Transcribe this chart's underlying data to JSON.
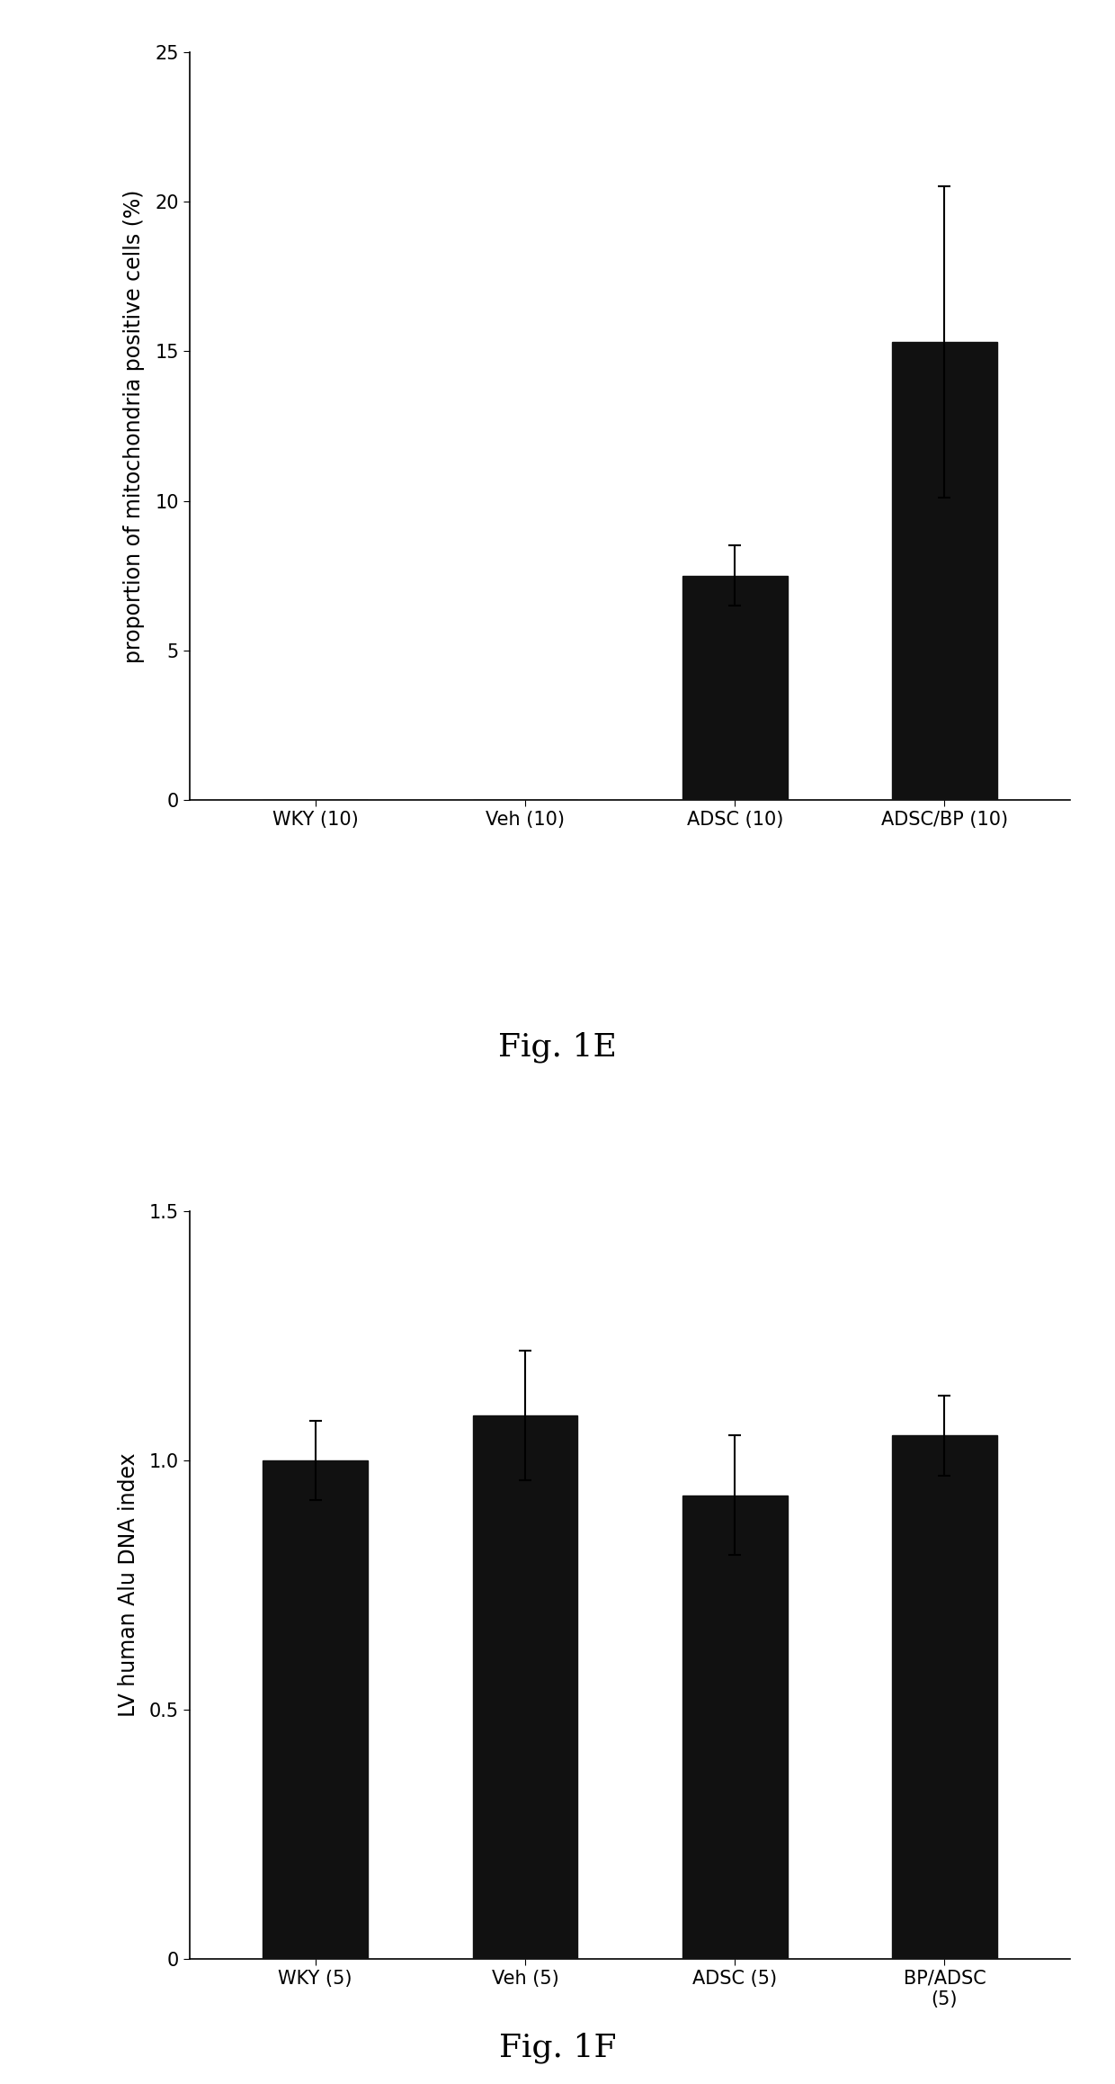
{
  "fig1e": {
    "categories": [
      "WKY (10)",
      "Veh (10)",
      "ADSC (10)",
      "ADSC/BP (10)"
    ],
    "values": [
      0.0,
      0.0,
      7.5,
      15.3
    ],
    "errors": [
      0.0,
      0.0,
      1.0,
      5.2
    ],
    "ylabel": "proportion of mitochondria positive cells (%)",
    "ylim": [
      0,
      25
    ],
    "yticks": [
      0,
      5,
      10,
      15,
      20,
      25
    ],
    "caption": "Fig. 1E",
    "bar_color": "#111111",
    "bar_width": 0.5
  },
  "fig1f": {
    "categories": [
      "WKY (5)",
      "Veh (5)",
      "ADSC (5)",
      "BP/ADSC\n(5)"
    ],
    "values": [
      1.0,
      1.09,
      0.93,
      1.05
    ],
    "errors": [
      0.08,
      0.13,
      0.12,
      0.08
    ],
    "ylabel": "LV human Alu DNA index",
    "ylim": [
      0,
      1.5
    ],
    "yticks": [
      0,
      0.5,
      1.0,
      1.5
    ],
    "caption": "Fig. 1F",
    "bar_color": "#111111",
    "bar_width": 0.5
  },
  "background_color": "#ffffff",
  "caption_fontsize": 26,
  "ylabel_fontsize": 17,
  "tick_fontsize": 15,
  "xtick_fontsize": 15
}
